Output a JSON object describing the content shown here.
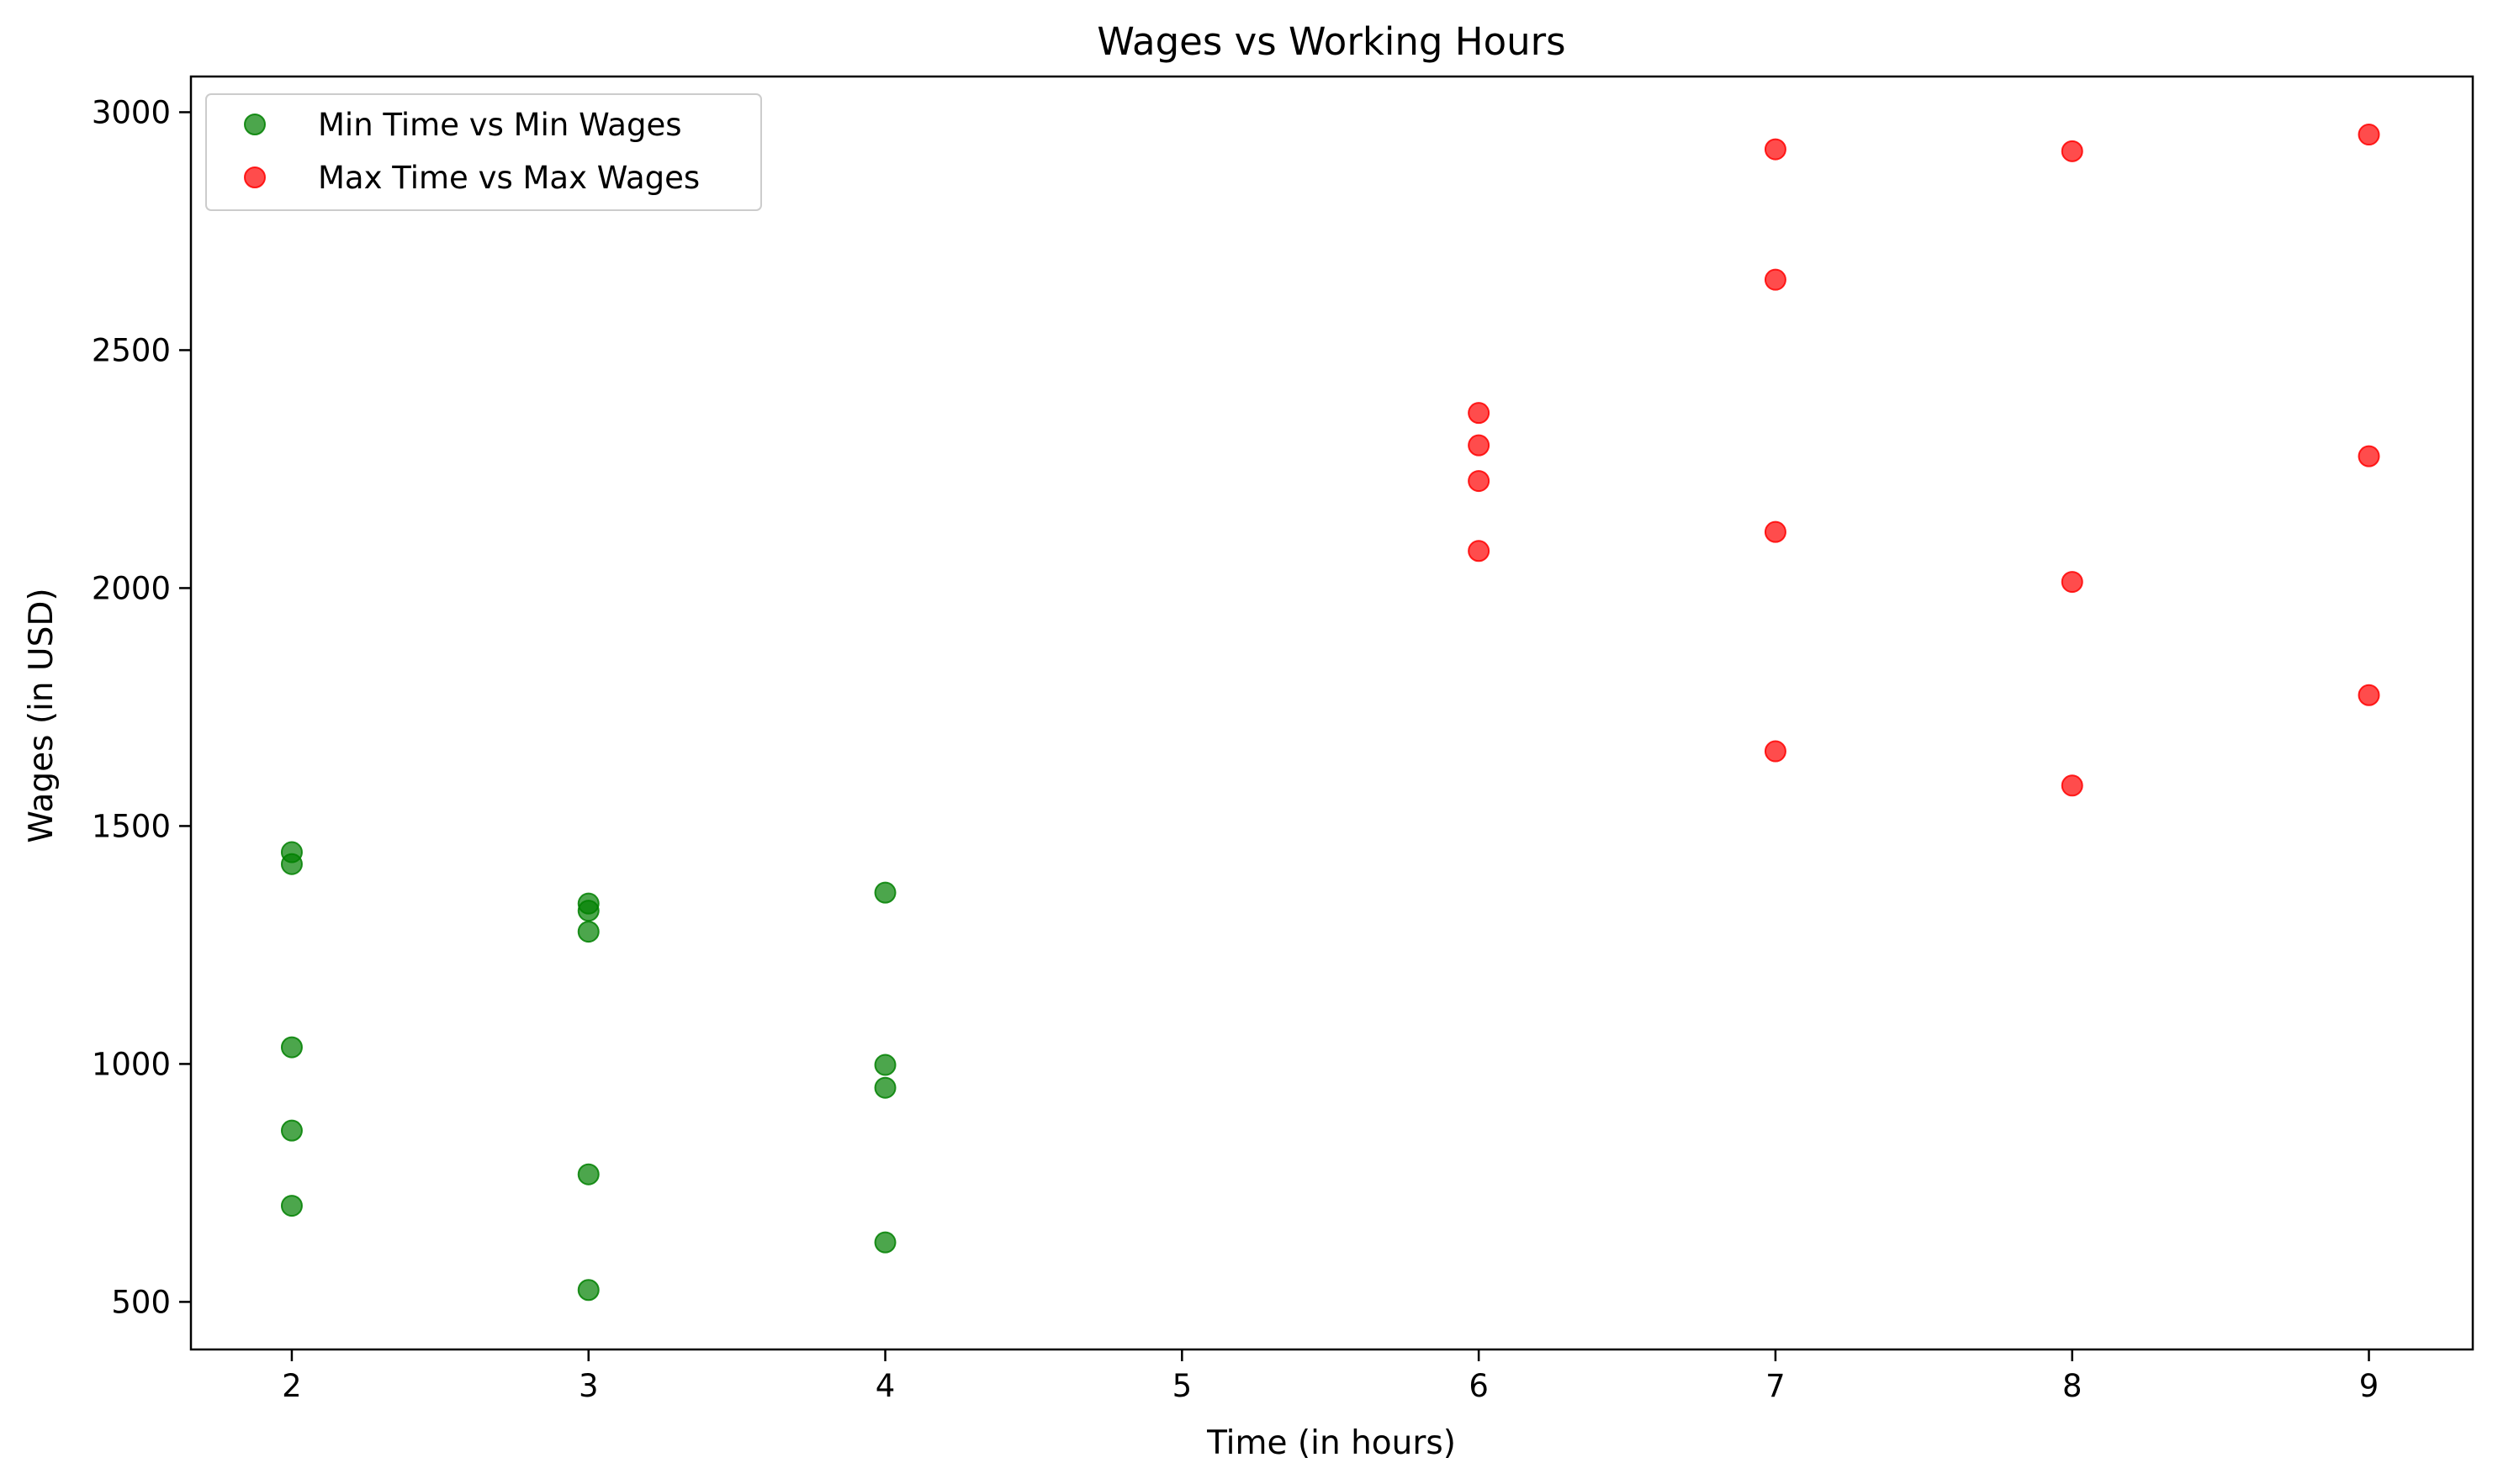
{
  "chart_data": {
    "type": "scatter",
    "title": "Wages vs Working Hours",
    "xlabel": "Time (in hours)",
    "ylabel": "Wages (in USD)",
    "xlim": [
      1.66,
      9.35
    ],
    "ylim": [
      400,
      3075
    ],
    "xticks": [
      2,
      3,
      4,
      5,
      6,
      7,
      8,
      9
    ],
    "yticks": [
      500,
      1000,
      1500,
      2000,
      2500,
      3000
    ],
    "grid": false,
    "legend_position": "top-left",
    "series": [
      {
        "name": "Min Time vs Min Wages",
        "color": "#008000",
        "opacity": 0.7,
        "points": [
          {
            "x": 2,
            "y": 1445
          },
          {
            "x": 2,
            "y": 1420
          },
          {
            "x": 2,
            "y": 1035
          },
          {
            "x": 2,
            "y": 860
          },
          {
            "x": 2,
            "y": 702
          },
          {
            "x": 3,
            "y": 1337
          },
          {
            "x": 3,
            "y": 1322
          },
          {
            "x": 3,
            "y": 1278
          },
          {
            "x": 3,
            "y": 768
          },
          {
            "x": 3,
            "y": 525
          },
          {
            "x": 4,
            "y": 1360
          },
          {
            "x": 4,
            "y": 998
          },
          {
            "x": 4,
            "y": 950
          },
          {
            "x": 4,
            "y": 625
          }
        ]
      },
      {
        "name": "Max Time vs Max Wages",
        "color": "#ff0000",
        "opacity": 0.7,
        "points": [
          {
            "x": 6,
            "y": 2368
          },
          {
            "x": 6,
            "y": 2300
          },
          {
            "x": 6,
            "y": 2225
          },
          {
            "x": 6,
            "y": 2078
          },
          {
            "x": 7,
            "y": 2922
          },
          {
            "x": 7,
            "y": 2648
          },
          {
            "x": 7,
            "y": 2118
          },
          {
            "x": 7,
            "y": 1657
          },
          {
            "x": 8,
            "y": 2918
          },
          {
            "x": 8,
            "y": 2013
          },
          {
            "x": 8,
            "y": 1585
          },
          {
            "x": 9,
            "y": 2953
          },
          {
            "x": 9,
            "y": 2277
          },
          {
            "x": 9,
            "y": 1775
          }
        ]
      }
    ]
  }
}
